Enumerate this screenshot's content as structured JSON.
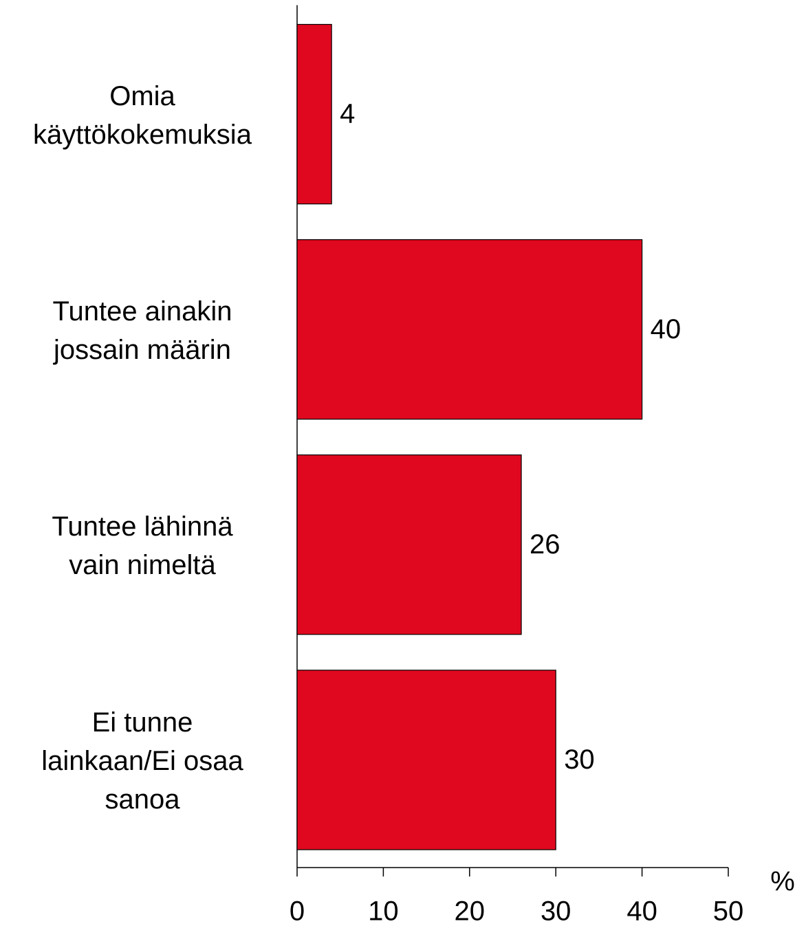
{
  "chart_data": {
    "type": "bar",
    "orientation": "horizontal",
    "categories": [
      "Omia\nkäyttökokemuksia",
      "Tuntee ainakin\njossain määrin",
      "Tuntee lähinnä\nvain nimeltä",
      "Ei tunne\nlainkaan/Ei osaa\nsanoa"
    ],
    "values": [
      4,
      40,
      26,
      30
    ],
    "color": "#e0081f",
    "xlabel": "%",
    "xlim": [
      0,
      50
    ],
    "xticks": [
      0,
      10,
      20,
      30,
      40,
      50
    ]
  }
}
